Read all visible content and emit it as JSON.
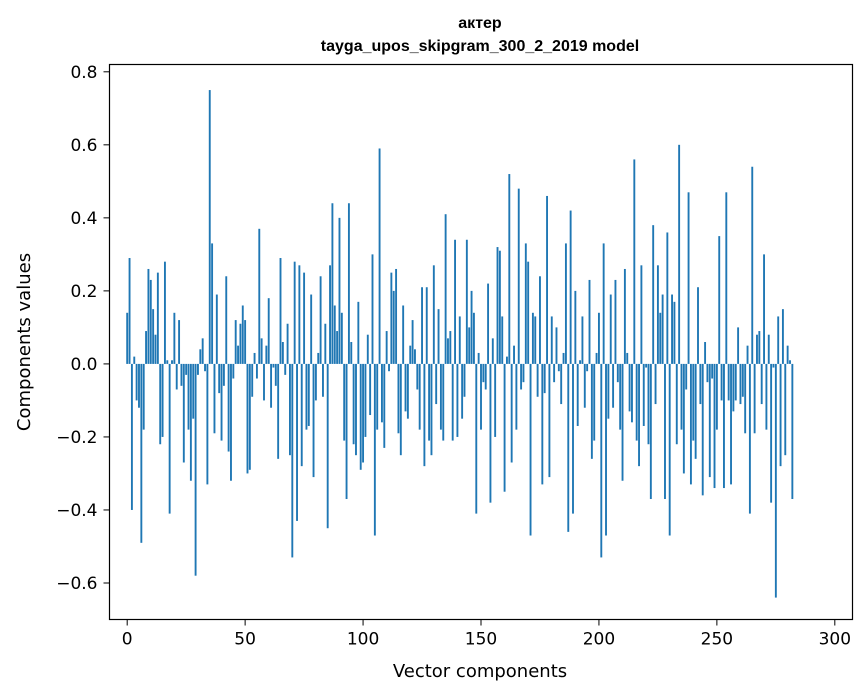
{
  "chart_data": {
    "type": "bar",
    "title": "актер",
    "subtitle": "tayga_upos_skipgram_300_2_2019 model",
    "xlabel": "Vector components",
    "ylabel": "Components values",
    "xlim": [
      -7.5,
      307.5
    ],
    "ylim": [
      -0.7,
      0.82
    ],
    "xticks": [
      0,
      50,
      100,
      150,
      200,
      250,
      300
    ],
    "xtick_labels": [
      "0",
      "50",
      "100",
      "150",
      "200",
      "250",
      "300"
    ],
    "yticks": [
      -0.6,
      -0.4,
      -0.2,
      0.0,
      0.2,
      0.4,
      0.6,
      0.8
    ],
    "ytick_labels": [
      "−0.6",
      "−0.4",
      "−0.2",
      "0.0",
      "0.2",
      "0.4",
      "0.6",
      "0.8"
    ],
    "bar_color": "#1f77b4",
    "grid": false,
    "values": [
      0.14,
      0.29,
      -0.4,
      0.02,
      -0.1,
      -0.12,
      -0.49,
      -0.18,
      0.09,
      0.26,
      0.23,
      0.15,
      0.08,
      0.25,
      -0.22,
      -0.2,
      0.28,
      0.01,
      -0.41,
      0.01,
      0.14,
      -0.07,
      0.12,
      -0.06,
      -0.27,
      -0.03,
      -0.18,
      -0.32,
      -0.15,
      -0.58,
      -0.03,
      0.04,
      0.07,
      -0.02,
      -0.33,
      0.75,
      0.33,
      -0.19,
      0.19,
      -0.08,
      -0.21,
      -0.06,
      0.24,
      -0.24,
      -0.32,
      -0.04,
      0.12,
      0.05,
      0.11,
      0.16,
      0.12,
      -0.3,
      -0.29,
      -0.09,
      0.03,
      -0.04,
      0.37,
      0.07,
      -0.1,
      0.05,
      0.18,
      -0.12,
      -0.01,
      -0.06,
      -0.26,
      0.29,
      0.06,
      -0.03,
      0.11,
      -0.25,
      -0.53,
      0.28,
      -0.43,
      0.27,
      -0.28,
      0.25,
      -0.18,
      -0.17,
      0.19,
      -0.31,
      -0.1,
      0.03,
      0.24,
      -0.09,
      0.11,
      -0.45,
      0.27,
      0.44,
      0.16,
      0.09,
      0.4,
      0.14,
      -0.21,
      -0.37,
      0.44,
      0.06,
      -0.22,
      -0.25,
      0.17,
      -0.29,
      -0.27,
      -0.2,
      0.08,
      -0.14,
      0.3,
      -0.47,
      -0.18,
      0.59,
      -0.16,
      -0.23,
      0.09,
      -0.02,
      0.25,
      0.2,
      0.26,
      -0.19,
      -0.25,
      0.16,
      -0.13,
      -0.15,
      0.05,
      0.12,
      0.04,
      -0.07,
      -0.18,
      0.21,
      -0.28,
      0.21,
      -0.21,
      -0.25,
      0.27,
      -0.11,
      0.15,
      -0.18,
      -0.21,
      0.41,
      0.07,
      0.09,
      -0.21,
      0.34,
      -0.2,
      0.13,
      -0.15,
      -0.09,
      0.34,
      0.1,
      0.2,
      0.14,
      -0.41,
      0.03,
      -0.18,
      -0.05,
      -0.07,
      0.22,
      -0.38,
      0.07,
      -0.2,
      0.32,
      0.31,
      0.13,
      -0.35,
      0.02,
      0.52,
      -0.27,
      0.05,
      -0.18,
      0.48,
      -0.07,
      -0.05,
      0.33,
      0.28,
      -0.47,
      0.14,
      0.13,
      -0.09,
      0.24,
      -0.33,
      -0.08,
      0.46,
      -0.31,
      0.13,
      -0.05,
      0.1,
      -0.02,
      -0.11,
      0.03,
      0.33,
      -0.46,
      0.42,
      -0.41,
      0.2,
      -0.17,
      0.01,
      0.13,
      -0.12,
      -0.02,
      0.23,
      -0.26,
      -0.21,
      0.03,
      0.14,
      -0.53,
      0.33,
      -0.47,
      -0.15,
      0.19,
      -0.12,
      0.23,
      -0.05,
      -0.18,
      -0.32,
      0.26,
      0.03,
      -0.13,
      -0.16,
      0.56,
      -0.21,
      -0.28,
      0.27,
      -0.17,
      -0.01,
      -0.22,
      -0.37,
      0.38,
      -0.11,
      0.27,
      0.14,
      0.19,
      -0.37,
      0.36,
      -0.47,
      0.19,
      0.17,
      -0.22,
      0.6,
      -0.18,
      -0.3,
      -0.07,
      0.47,
      -0.33,
      -0.21,
      -0.26,
      0.21,
      -0.11,
      -0.36,
      0.06,
      -0.05,
      -0.31,
      -0.04,
      -0.34,
      -0.18,
      0.35,
      -0.1,
      -0.34,
      0.47,
      -0.1,
      -0.33,
      -0.13,
      -0.1,
      0.1,
      -0.11,
      -0.09,
      -0.19,
      0.05,
      -0.41,
      0.54,
      -0.19,
      0.08,
      0.09,
      -0.11,
      0.3,
      -0.18,
      0.08,
      -0.38,
      -0.01,
      -0.64,
      0.13,
      -0.28,
      0.15,
      -0.25,
      0.05,
      0.01,
      -0.37
    ]
  }
}
